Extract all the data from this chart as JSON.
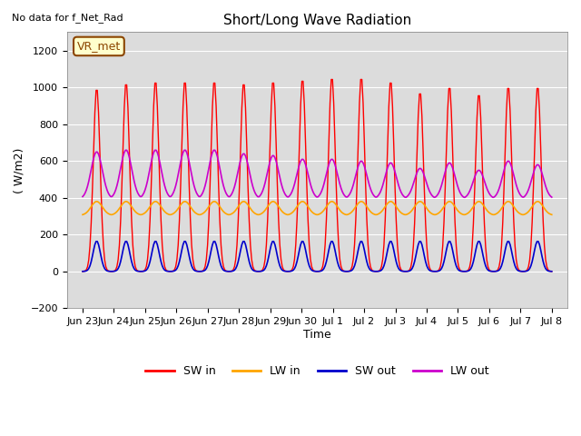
{
  "title": "Short/Long Wave Radiation",
  "ylabel": "( W/m2)",
  "xlabel": "Time",
  "top_left_text": "No data for f_Net_Rad",
  "station_label": "VR_met",
  "ylim": [
    -200,
    1300
  ],
  "yticks": [
    -200,
    0,
    200,
    400,
    600,
    800,
    1000,
    1200
  ],
  "x_tick_labels": [
    "Jun 23",
    "Jun 24",
    "Jun 25",
    "Jun 26",
    "Jun 27",
    "Jun 28",
    "Jun 29",
    "Jun 30",
    "Jul 1",
    "Jul 2",
    "Jul 3",
    "Jul 4",
    "Jul 5",
    "Jul 6",
    "Jul 7",
    "Jul 8"
  ],
  "colors": {
    "SW_in": "#ff0000",
    "LW_in": "#ffa500",
    "SW_out": "#0000cc",
    "LW_out": "#cc00cc"
  },
  "legend_labels": [
    "SW in",
    "LW in",
    "SW out",
    "LW out"
  ],
  "plot_bg_color": "#dcdcdc",
  "n_days": 16
}
